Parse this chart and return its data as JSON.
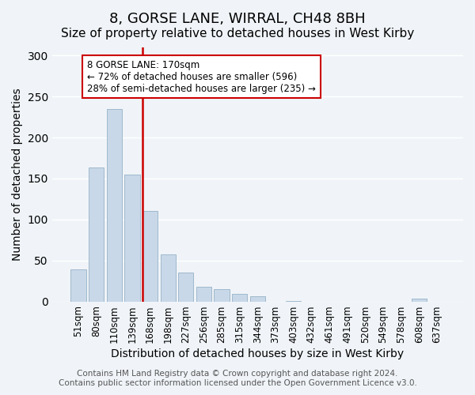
{
  "title": "8, GORSE LANE, WIRRAL, CH48 8BH",
  "subtitle": "Size of property relative to detached houses in West Kirby",
  "xlabel": "Distribution of detached houses by size in West Kirby",
  "ylabel": "Number of detached properties",
  "bar_labels": [
    "51sqm",
    "80sqm",
    "110sqm",
    "139sqm",
    "168sqm",
    "198sqm",
    "227sqm",
    "256sqm",
    "285sqm",
    "315sqm",
    "344sqm",
    "373sqm",
    "403sqm",
    "432sqm",
    "461sqm",
    "491sqm",
    "520sqm",
    "549sqm",
    "578sqm",
    "608sqm",
    "637sqm"
  ],
  "bar_values": [
    39,
    163,
    235,
    155,
    110,
    57,
    35,
    18,
    15,
    9,
    6,
    0,
    1,
    0,
    0,
    0,
    0,
    0,
    0,
    3,
    0
  ],
  "bar_color": "#c8d8e8",
  "bar_edge_color": "#a0b8cc",
  "vline_x": 4,
  "vline_color": "#cc0000",
  "annotation_text_line1": "8 GORSE LANE: 170sqm",
  "annotation_text_line2": "← 72% of detached houses are smaller (596)",
  "annotation_text_line3": "28% of semi-detached houses are larger (235) →",
  "annotation_box_color": "#ffffff",
  "annotation_box_edge_color": "#cc0000",
  "ylim": [
    0,
    310
  ],
  "footer_line1": "Contains HM Land Registry data © Crown copyright and database right 2024.",
  "footer_line2": "Contains public sector information licensed under the Open Government Licence v3.0.",
  "background_color": "#f0f4f8",
  "title_fontsize": 13,
  "subtitle_fontsize": 11,
  "xlabel_fontsize": 10,
  "ylabel_fontsize": 10,
  "tick_fontsize": 8.5,
  "footer_fontsize": 7.5
}
